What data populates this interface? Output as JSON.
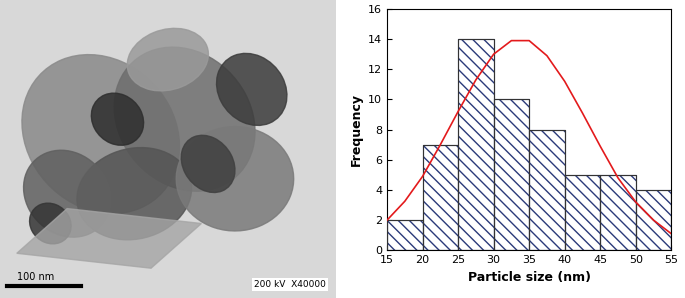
{
  "image": {
    "scale_bar": "100 nm",
    "caption": "200 kV  X40000"
  },
  "chart_data": {
    "type": "histogram",
    "x_label": "Particle size (nm)",
    "y_label": "Frequency",
    "bins": [
      15,
      20,
      25,
      30,
      35,
      40,
      45,
      50,
      55
    ],
    "values": [
      2,
      7,
      14,
      10,
      8,
      5,
      5,
      4
    ],
    "color": "#2b3a7a",
    "series": [
      {
        "type": "line",
        "color": "#e31a1c",
        "x": [
          15,
          17.5,
          20,
          22.5,
          25,
          27.5,
          30,
          32.5,
          35,
          37.5,
          40,
          42.5,
          45,
          47.5,
          50,
          52.5,
          55
        ],
        "values": [
          2.0,
          3.25,
          4.9,
          7.0,
          9.2,
          11.3,
          13.0,
          13.9,
          13.9,
          12.9,
          11.2,
          9.1,
          6.9,
          4.8,
          3.2,
          2.0,
          1.1
        ]
      }
    ],
    "xlim": [
      15,
      55
    ],
    "xticks": [
      15,
      20,
      25,
      30,
      35,
      40,
      45,
      50,
      55
    ],
    "ylim": [
      0,
      16
    ],
    "yticks": [
      0,
      2,
      4,
      6,
      8,
      10,
      12,
      14,
      16
    ]
  }
}
